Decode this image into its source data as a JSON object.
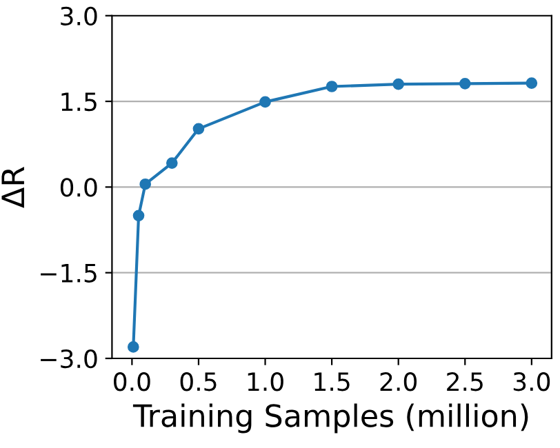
{
  "chart_data": {
    "type": "line",
    "xlabel": "Training Samples (million)",
    "ylabel": "ΔR",
    "x": [
      0.01,
      0.05,
      0.1,
      0.3,
      0.5,
      1.0,
      1.5,
      2.0,
      2.5,
      3.0
    ],
    "series": [
      {
        "color": "#1f77b4",
        "values": [
          -2.8,
          -0.5,
          0.05,
          0.42,
          1.02,
          1.49,
          1.76,
          1.8,
          1.81,
          1.82
        ]
      }
    ],
    "xlim": [
      -0.15,
      3.15
    ],
    "xticks": [
      {
        "value": 0,
        "label": "0.0"
      },
      0.5,
      {
        "value": 1,
        "label": "1.0"
      },
      1.5,
      {
        "value": 2,
        "label": "2.0"
      },
      2.5,
      {
        "value": 3,
        "label": "3.0"
      }
    ],
    "ylim": [
      -3.0,
      3.0
    ],
    "yticks": [
      {
        "value": -3.0,
        "label": "−3.0"
      },
      {
        "value": -1.5,
        "label": "−1.5"
      },
      {
        "value": 0.0,
        "label": "0.0"
      },
      {
        "value": 1.5,
        "label": "1.5"
      },
      {
        "value": 3.0,
        "label": "3.0"
      }
    ],
    "grid": "y",
    "marker": "circle",
    "line_style": "solid"
  }
}
